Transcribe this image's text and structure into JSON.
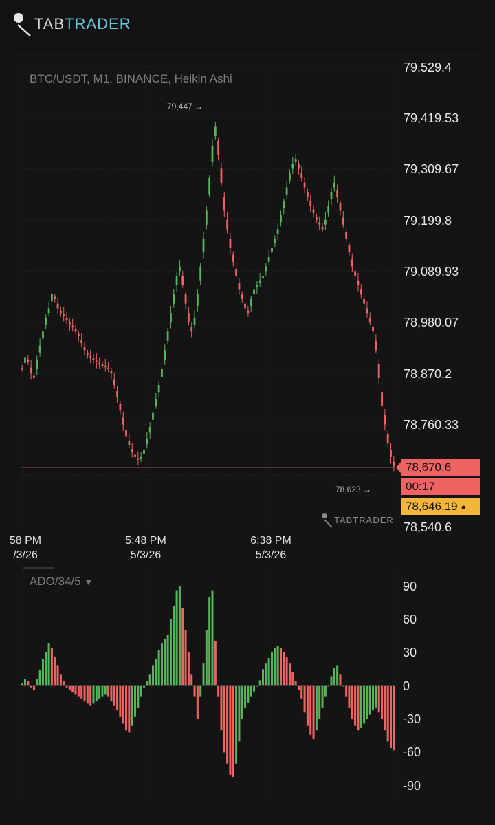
{
  "brand": {
    "part1": "TAB",
    "part2": "TRADER"
  },
  "chart": {
    "title": "BTC/USDT, M1, BINANCE, Heikin Ashi",
    "price_axis": [
      "79,529.4",
      "79,419.53",
      "79,309.67",
      "79,199.8",
      "79,089.93",
      "78,980.07",
      "78,870.2",
      "78,760.33",
      "78,540.6"
    ],
    "time_axis": [
      {
        "time": "58 PM",
        "date": "/3/26"
      },
      {
        "time": "5:48 PM",
        "date": "5/3/26"
      },
      {
        "time": "6:38 PM",
        "date": "5/3/26"
      }
    ],
    "high_marker": "79,447",
    "low_marker": "78,623",
    "current_price": "78,670.6",
    "countdown": "00:17",
    "mark_price": "78,646.19",
    "watermark": "TABTRADER",
    "colors": {
      "up": "#56b55b",
      "down": "#f06363",
      "accent": "#5fc4d8",
      "mark": "#f4b63a"
    }
  },
  "indicator": {
    "label": "ADO/34/5",
    "axis": [
      "90",
      "60",
      "30",
      "0",
      "-30",
      "-60",
      "-90"
    ]
  },
  "chart_data": {
    "type": "candlestick",
    "price_ylim": [
      78540.6,
      79529.4
    ],
    "indicator_ylim": [
      -90,
      90
    ],
    "price_close": [
      78880,
      78905,
      78895,
      78870,
      78860,
      78900,
      78930,
      78960,
      78990,
      79010,
      79040,
      79030,
      79010,
      79000,
      78995,
      78985,
      78975,
      78970,
      78960,
      78950,
      78935,
      78920,
      78910,
      78905,
      78900,
      78895,
      78890,
      78888,
      78885,
      78880,
      78870,
      78845,
      78820,
      78790,
      78760,
      78735,
      78715,
      78700,
      78690,
      78685,
      78690,
      78705,
      78730,
      78755,
      78785,
      78815,
      78845,
      78880,
      78920,
      78960,
      79000,
      79040,
      79080,
      79100,
      79060,
      79020,
      78980,
      78960,
      78990,
      79040,
      79100,
      79160,
      79220,
      79290,
      79360,
      79400,
      79340,
      79280,
      79220,
      79180,
      79140,
      79110,
      79080,
      79050,
      79030,
      79010,
      79000,
      79030,
      79050,
      79060,
      79070,
      79080,
      79100,
      79120,
      79140,
      79160,
      79180,
      79210,
      79240,
      79270,
      79300,
      79320,
      79330,
      79310,
      79290,
      79270,
      79250,
      79230,
      79215,
      79200,
      79190,
      79180,
      79200,
      79230,
      79260,
      79280,
      79250,
      79220,
      79190,
      79160,
      79130,
      79100,
      79080,
      79060,
      79040,
      79020,
      79000,
      78980,
      78960,
      78920,
      78860,
      78800,
      78760,
      78720,
      78690,
      78670
    ],
    "indicator": [
      2,
      6,
      4,
      -2,
      -4,
      6,
      14,
      24,
      30,
      38,
      34,
      26,
      18,
      10,
      4,
      -2,
      -4,
      -6,
      -8,
      -10,
      -12,
      -14,
      -16,
      -18,
      -16,
      -14,
      -12,
      -10,
      -8,
      -10,
      -14,
      -18,
      -22,
      -28,
      -34,
      -40,
      -42,
      -36,
      -28,
      -20,
      -10,
      -2,
      4,
      10,
      18,
      24,
      32,
      38,
      42,
      46,
      60,
      72,
      86,
      90,
      70,
      50,
      30,
      10,
      -10,
      -30,
      -10,
      20,
      50,
      80,
      86,
      40,
      -10,
      -40,
      -60,
      -70,
      -80,
      -82,
      -70,
      -50,
      -30,
      -20,
      -15,
      -10,
      -5,
      0,
      5,
      15,
      20,
      25,
      30,
      34,
      36,
      34,
      30,
      26,
      20,
      12,
      4,
      -4,
      -12,
      -24,
      -36,
      -44,
      -48,
      -40,
      -30,
      -20,
      -10,
      0,
      8,
      16,
      18,
      10,
      0,
      -10,
      -20,
      -30,
      -36,
      -40,
      -38,
      -34,
      -30,
      -26,
      -22,
      -20,
      -24,
      -30,
      -40,
      -50,
      -56,
      -58
    ]
  }
}
